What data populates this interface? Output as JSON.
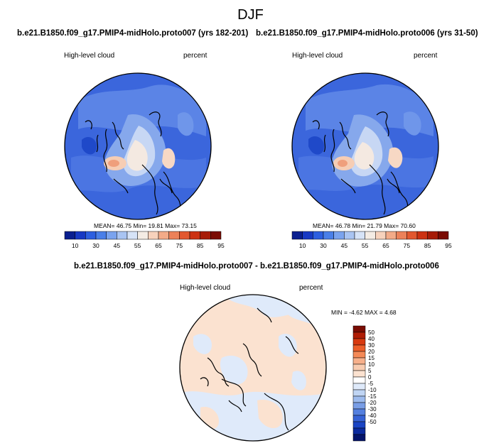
{
  "page": {
    "title": "DJF"
  },
  "panels": [
    {
      "title": "b.e21.B1850.f09_g17.PMIP4-midHolo.proto007 (yrs 182-201)",
      "left_label": "High-level cloud",
      "right_label": "percent",
      "stats": "MEAN=  46.75  Min=  19.81  Max=  73.15"
    },
    {
      "title": "b.e21.B1850.f09_g17.PMIP4-midHolo.proto006 (yrs 31-50)",
      "left_label": "High-level cloud",
      "right_label": "percent",
      "stats": "MEAN=  46.78  Min=  21.79  Max=  70.60"
    }
  ],
  "diff_panel": {
    "title": "b.e21.B1850.f09_g17.PMIP4-midHolo.proto007 - b.e21.B1850.f09_g17.PMIP4-midHolo.proto006",
    "left_label": "High-level cloud",
    "right_label": "percent",
    "stats": "MIN =  -4.62 MAX =   4.68"
  },
  "colorbar_abs": {
    "colors": [
      "#0a1f8f",
      "#1739c4",
      "#2d5fe0",
      "#4a7fe8",
      "#7aa3ee",
      "#a9c4f2",
      "#d6e3f7",
      "#f4ece4",
      "#f7d2bc",
      "#f3ab88",
      "#ec8159",
      "#e2582f",
      "#cc3212",
      "#a61c07",
      "#7a0c03"
    ],
    "tick_labels": [
      "10",
      "30",
      "45",
      "55",
      "65",
      "75",
      "85",
      "95"
    ]
  },
  "colorbar_diff": {
    "colors": [
      "#7a0c03",
      "#b01d05",
      "#d83a10",
      "#ec5f2a",
      "#f48957",
      "#f7b08b",
      "#f8ccb1",
      "#fbe2d0",
      "#ffffff",
      "#dfeafa",
      "#c0d5f4",
      "#9dbbee",
      "#799ee6",
      "#5580df",
      "#3763d6",
      "#1a44c4",
      "#0b2a9e",
      "#04146b"
    ],
    "tick_labels": [
      "50",
      "40",
      "30",
      "20",
      "15",
      "10",
      "5",
      "0",
      "-5",
      "-10",
      "-15",
      "-20",
      "-30",
      "-40",
      "-50"
    ]
  },
  "chart_data": [
    {
      "type": "heatmap",
      "subtype": "polar-stereographic map",
      "title": "b.e21.B1850.f09_g17.PMIP4-midHolo.proto007 (yrs 182-201)",
      "variable": "High-level cloud",
      "units": "percent",
      "season": "DJF",
      "mean": 46.75,
      "min": 19.81,
      "max": 73.15,
      "colorbar_ticks": [
        10,
        30,
        45,
        55,
        65,
        75,
        85,
        95
      ]
    },
    {
      "type": "heatmap",
      "subtype": "polar-stereographic map",
      "title": "b.e21.B1850.f09_g17.PMIP4-midHolo.proto006 (yrs 31-50)",
      "variable": "High-level cloud",
      "units": "percent",
      "season": "DJF",
      "mean": 46.78,
      "min": 21.79,
      "max": 70.6,
      "colorbar_ticks": [
        10,
        30,
        45,
        55,
        65,
        75,
        85,
        95
      ]
    },
    {
      "type": "heatmap",
      "subtype": "polar-stereographic map (difference)",
      "title": "b.e21.B1850.f09_g17.PMIP4-midHolo.proto007 - b.e21.B1850.f09_g17.PMIP4-midHolo.proto006",
      "variable": "High-level cloud",
      "units": "percent",
      "season": "DJF",
      "min": -4.62,
      "max": 4.68,
      "colorbar_ticks": [
        50,
        40,
        30,
        20,
        15,
        10,
        5,
        0,
        -5,
        -10,
        -15,
        -20,
        -30,
        -40,
        -50
      ]
    }
  ]
}
